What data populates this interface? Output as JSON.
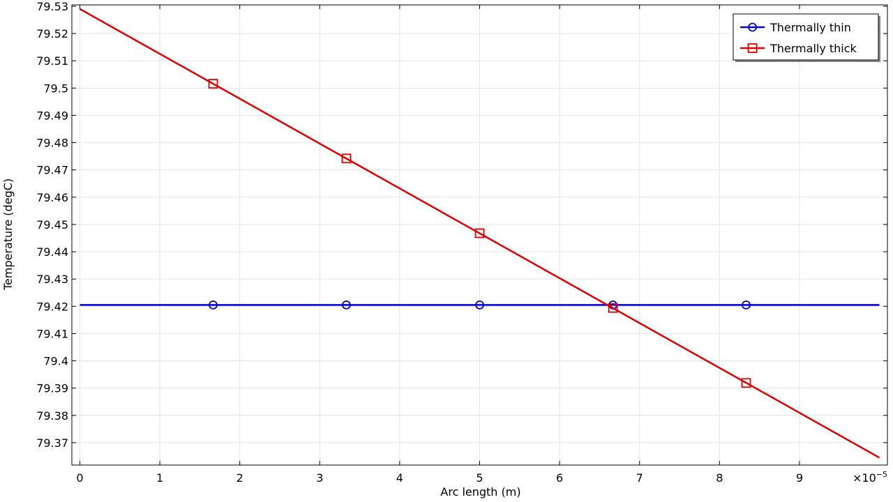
{
  "chart_data": {
    "type": "line",
    "xlabel": "Arc length (m)",
    "ylabel": "Temperature (degC)",
    "x_multiplier_label": "×10",
    "x_multiplier_exponent": "−5",
    "xlim": [
      -0.1,
      10.1
    ],
    "ylim": [
      79.3618,
      79.5305
    ],
    "x_ticks": [
      0,
      1,
      2,
      3,
      4,
      5,
      6,
      7,
      8,
      9
    ],
    "x_tick_labels": [
      "0",
      "1",
      "2",
      "3",
      "4",
      "5",
      "6",
      "7",
      "8",
      "9"
    ],
    "y_ticks": [
      79.37,
      79.38,
      79.39,
      79.4,
      79.41,
      79.42,
      79.43,
      79.44,
      79.45,
      79.46,
      79.47,
      79.48,
      79.49,
      79.5,
      79.51,
      79.52,
      79.53
    ],
    "y_tick_labels": [
      "79.37",
      "79.38",
      "79.39",
      "79.4",
      "79.41",
      "79.42",
      "79.43",
      "79.44",
      "79.45",
      "79.46",
      "79.47",
      "79.48",
      "79.49",
      "79.5",
      "79.51",
      "79.52",
      "79.53"
    ],
    "grid": true,
    "legend_position": "top-right",
    "series": [
      {
        "name": "Thermally thin",
        "color": "#0000cc",
        "marker": "circle",
        "x": [
          0,
          10
        ],
        "y": [
          79.4205,
          79.4205
        ],
        "marker_x": [
          1.667,
          3.333,
          5.0,
          6.667,
          8.333
        ],
        "marker_y": [
          79.4205,
          79.4205,
          79.4205,
          79.4205,
          79.4205
        ]
      },
      {
        "name": "Thermally thick",
        "color": "#dd0000",
        "marker": "square",
        "x": [
          0,
          10
        ],
        "y": [
          79.529,
          79.3645
        ],
        "marker_x": [
          1.667,
          3.333,
          5.0,
          6.667,
          8.333
        ],
        "marker_y": [
          79.5016,
          79.4742,
          79.4468,
          79.4194,
          79.3919
        ]
      }
    ]
  }
}
